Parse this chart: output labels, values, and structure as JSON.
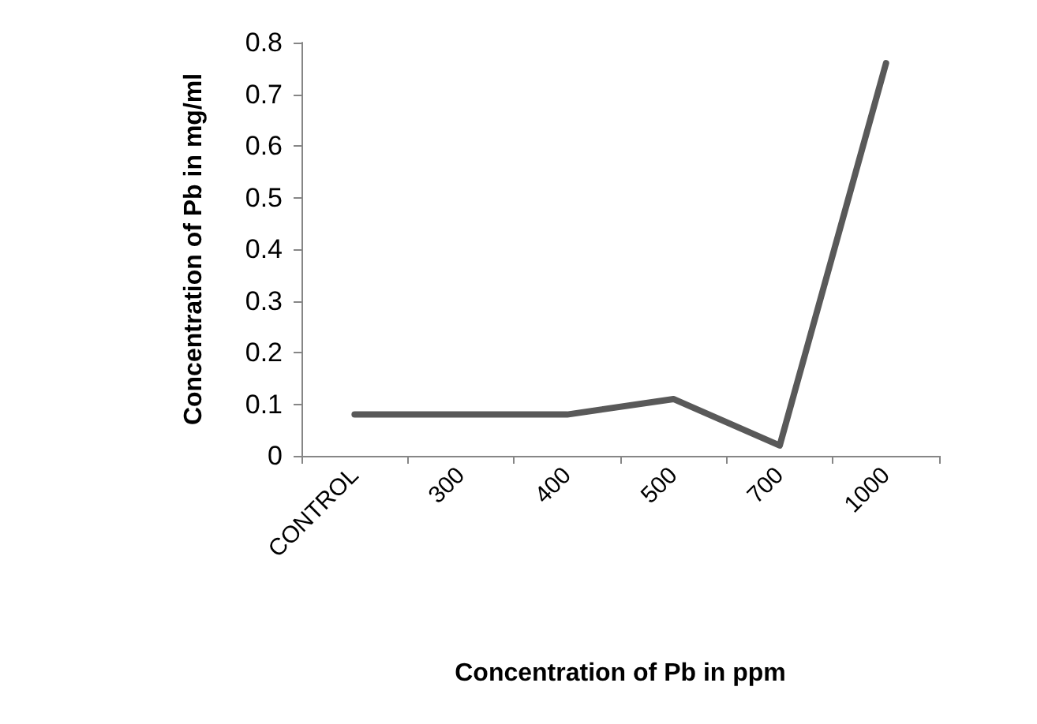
{
  "chart_data": {
    "type": "line",
    "xlabel": "Concentration of Pb in ppm",
    "ylabel": "Concentration of Pb in mg/ml",
    "categories": [
      "CONTROL",
      "300",
      "400",
      "500",
      "700",
      "1000"
    ],
    "series": [
      {
        "color": "#595959",
        "values": [
          0.08,
          0.08,
          0.08,
          0.11,
          0.02,
          0.76
        ]
      }
    ],
    "ylim": [
      0,
      0.8
    ],
    "yticks": [
      0,
      0.1,
      0.2,
      0.3,
      0.4,
      0.5,
      0.6,
      0.7,
      0.8
    ],
    "grid": false,
    "marker": "none",
    "line_style": "solid"
  }
}
